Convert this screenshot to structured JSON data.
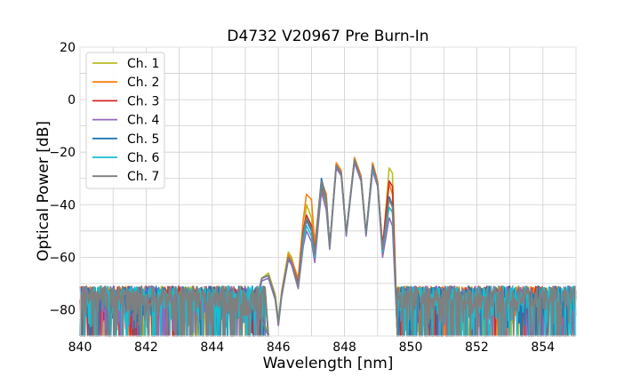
{
  "chart_data": {
    "type": "line",
    "title": "D4732 V20967 Pre Burn-In",
    "xlabel": "Wavelength [nm]",
    "ylabel": "Optical Power [dB]",
    "xlim": [
      840,
      855
    ],
    "ylim": [
      -90,
      20
    ],
    "xticks": [
      840,
      842,
      844,
      846,
      848,
      850,
      852,
      854
    ],
    "xtick_labels": [
      "840",
      "842",
      "844",
      "846",
      "848",
      "850",
      "852",
      "854"
    ],
    "yticks": [
      -80,
      -60,
      -40,
      -20,
      0,
      20
    ],
    "ytick_labels": [
      "−80",
      "−60",
      "−40",
      "−20",
      "0",
      "20"
    ],
    "grid": true,
    "legend_position": "top-left",
    "noise_floor": {
      "range": [
        -90,
        -71
      ],
      "x_left": [
        840,
        845.6
      ],
      "x_right": [
        849.6,
        855
      ]
    },
    "series": [
      {
        "name": "Ch. 1",
        "color": "#bcbd22",
        "points": [
          [
            845.3,
            -78
          ],
          [
            845.5,
            -68
          ],
          [
            845.7,
            -66
          ],
          [
            845.9,
            -74
          ],
          [
            846.0,
            -84
          ],
          [
            846.1,
            -73
          ],
          [
            846.3,
            -58
          ],
          [
            846.4,
            -60
          ],
          [
            846.6,
            -70
          ],
          [
            846.7,
            -58
          ],
          [
            846.85,
            -40
          ],
          [
            847.0,
            -45
          ],
          [
            847.1,
            -56
          ],
          [
            847.3,
            -33
          ],
          [
            847.45,
            -41
          ],
          [
            847.55,
            -56
          ],
          [
            847.75,
            -25
          ],
          [
            847.9,
            -28
          ],
          [
            848.05,
            -51
          ],
          [
            848.3,
            -23
          ],
          [
            848.5,
            -31
          ],
          [
            848.65,
            -51
          ],
          [
            848.85,
            -25
          ],
          [
            849.0,
            -32
          ],
          [
            849.15,
            -57
          ],
          [
            849.35,
            -26
          ],
          [
            849.45,
            -28
          ],
          [
            849.6,
            -92
          ]
        ]
      },
      {
        "name": "Ch. 2",
        "color": "#ff7f0e",
        "points": [
          [
            845.3,
            -79
          ],
          [
            845.5,
            -68
          ],
          [
            845.7,
            -67
          ],
          [
            845.9,
            -75
          ],
          [
            846.0,
            -86
          ],
          [
            846.1,
            -73
          ],
          [
            846.3,
            -59
          ],
          [
            846.4,
            -61
          ],
          [
            846.6,
            -68
          ],
          [
            846.75,
            -46
          ],
          [
            846.85,
            -36
          ],
          [
            847.0,
            -38
          ],
          [
            847.1,
            -55
          ],
          [
            847.3,
            -31
          ],
          [
            847.45,
            -36
          ],
          [
            847.55,
            -56
          ],
          [
            847.75,
            -24
          ],
          [
            847.9,
            -27
          ],
          [
            848.05,
            -51
          ],
          [
            848.3,
            -22
          ],
          [
            848.5,
            -29
          ],
          [
            848.65,
            -51
          ],
          [
            848.85,
            -24
          ],
          [
            849.0,
            -31
          ],
          [
            849.15,
            -56
          ],
          [
            849.35,
            -32
          ],
          [
            849.45,
            -36
          ],
          [
            849.6,
            -92
          ]
        ]
      },
      {
        "name": "Ch. 3",
        "color": "#d62728",
        "points": [
          [
            845.3,
            -78
          ],
          [
            845.5,
            -68
          ],
          [
            845.7,
            -67
          ],
          [
            845.9,
            -75
          ],
          [
            846.0,
            -85
          ],
          [
            846.1,
            -74
          ],
          [
            846.3,
            -60
          ],
          [
            846.4,
            -62
          ],
          [
            846.6,
            -70
          ],
          [
            846.75,
            -50
          ],
          [
            846.85,
            -44
          ],
          [
            847.0,
            -48
          ],
          [
            847.1,
            -58
          ],
          [
            847.3,
            -33
          ],
          [
            847.45,
            -39
          ],
          [
            847.55,
            -56
          ],
          [
            847.75,
            -25
          ],
          [
            847.9,
            -28
          ],
          [
            848.05,
            -51
          ],
          [
            848.3,
            -23
          ],
          [
            848.5,
            -30
          ],
          [
            848.65,
            -51
          ],
          [
            848.85,
            -25
          ],
          [
            849.0,
            -32
          ],
          [
            849.15,
            -56
          ],
          [
            849.35,
            -31
          ],
          [
            849.45,
            -33
          ],
          [
            849.6,
            -92
          ]
        ]
      },
      {
        "name": "Ch. 4",
        "color": "#9467bd",
        "points": [
          [
            845.3,
            -79
          ],
          [
            845.5,
            -69
          ],
          [
            845.7,
            -68
          ],
          [
            845.9,
            -76
          ],
          [
            846.0,
            -86
          ],
          [
            846.1,
            -75
          ],
          [
            846.3,
            -61
          ],
          [
            846.4,
            -63
          ],
          [
            846.6,
            -72
          ],
          [
            846.75,
            -56
          ],
          [
            846.85,
            -50
          ],
          [
            847.0,
            -54
          ],
          [
            847.1,
            -62
          ],
          [
            847.3,
            -35
          ],
          [
            847.45,
            -42
          ],
          [
            847.55,
            -57
          ],
          [
            847.75,
            -26
          ],
          [
            847.9,
            -29
          ],
          [
            848.05,
            -52
          ],
          [
            848.3,
            -24
          ],
          [
            848.5,
            -31
          ],
          [
            848.65,
            -52
          ],
          [
            848.85,
            -27
          ],
          [
            849.0,
            -33
          ],
          [
            849.15,
            -60
          ],
          [
            849.35,
            -45
          ],
          [
            849.45,
            -48
          ],
          [
            849.6,
            -92
          ]
        ]
      },
      {
        "name": "Ch. 5",
        "color": "#1f77b4",
        "points": [
          [
            845.3,
            -78
          ],
          [
            845.5,
            -68
          ],
          [
            845.7,
            -67
          ],
          [
            845.9,
            -75
          ],
          [
            846.0,
            -85
          ],
          [
            846.1,
            -74
          ],
          [
            846.3,
            -60
          ],
          [
            846.4,
            -62
          ],
          [
            846.6,
            -71
          ],
          [
            846.75,
            -52
          ],
          [
            846.85,
            -46
          ],
          [
            847.0,
            -50
          ],
          [
            847.1,
            -59
          ],
          [
            847.3,
            -30
          ],
          [
            847.45,
            -38
          ],
          [
            847.55,
            -56
          ],
          [
            847.75,
            -25
          ],
          [
            847.9,
            -28
          ],
          [
            848.05,
            -51
          ],
          [
            848.3,
            -23
          ],
          [
            848.5,
            -30
          ],
          [
            848.65,
            -51
          ],
          [
            848.85,
            -25
          ],
          [
            849.0,
            -32
          ],
          [
            849.15,
            -57
          ],
          [
            849.35,
            -37
          ],
          [
            849.45,
            -40
          ],
          [
            849.6,
            -92
          ]
        ]
      },
      {
        "name": "Ch. 6",
        "color": "#17becf",
        "points": [
          [
            845.3,
            -78
          ],
          [
            845.5,
            -68
          ],
          [
            845.7,
            -67
          ],
          [
            845.9,
            -75
          ],
          [
            846.0,
            -85
          ],
          [
            846.1,
            -74
          ],
          [
            846.3,
            -60
          ],
          [
            846.4,
            -62
          ],
          [
            846.6,
            -71
          ],
          [
            846.75,
            -54
          ],
          [
            846.85,
            -48
          ],
          [
            847.0,
            -52
          ],
          [
            847.1,
            -60
          ],
          [
            847.3,
            -32
          ],
          [
            847.45,
            -39
          ],
          [
            847.55,
            -56
          ],
          [
            847.75,
            -25
          ],
          [
            847.9,
            -28
          ],
          [
            848.05,
            -51
          ],
          [
            848.3,
            -23
          ],
          [
            848.5,
            -30
          ],
          [
            848.65,
            -51
          ],
          [
            848.85,
            -26
          ],
          [
            849.0,
            -32
          ],
          [
            849.15,
            -58
          ],
          [
            849.35,
            -41
          ],
          [
            849.45,
            -43
          ],
          [
            849.6,
            -92
          ]
        ]
      },
      {
        "name": "Ch. 7",
        "color": "#7f7f7f",
        "points": [
          [
            845.3,
            -78
          ],
          [
            845.5,
            -68
          ],
          [
            845.7,
            -67
          ],
          [
            845.9,
            -75
          ],
          [
            846.0,
            -85
          ],
          [
            846.1,
            -74
          ],
          [
            846.3,
            -60
          ],
          [
            846.4,
            -62
          ],
          [
            846.6,
            -71
          ],
          [
            846.75,
            -51
          ],
          [
            846.85,
            -45
          ],
          [
            847.0,
            -49
          ],
          [
            847.1,
            -59
          ],
          [
            847.3,
            -31
          ],
          [
            847.45,
            -38
          ],
          [
            847.55,
            -56
          ],
          [
            847.75,
            -25
          ],
          [
            847.9,
            -28
          ],
          [
            848.05,
            -51
          ],
          [
            848.3,
            -23
          ],
          [
            848.5,
            -30
          ],
          [
            848.65,
            -51
          ],
          [
            848.85,
            -25
          ],
          [
            849.0,
            -32
          ],
          [
            849.15,
            -57
          ],
          [
            849.35,
            -38
          ],
          [
            849.45,
            -41
          ],
          [
            849.6,
            -92
          ]
        ]
      }
    ]
  }
}
